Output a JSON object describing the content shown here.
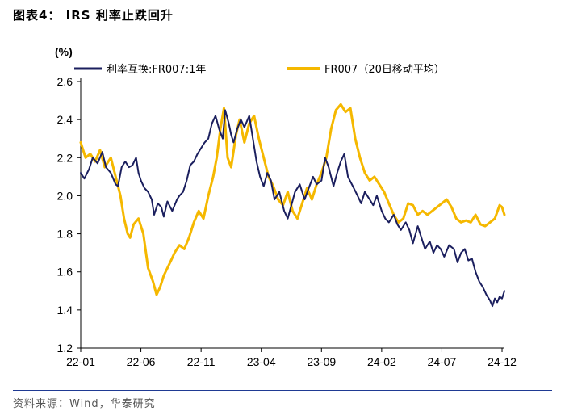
{
  "figure": {
    "title": "图表4： IRS 利率止跌回升",
    "source": "资料来源：Wind，华泰研究"
  },
  "colors": {
    "irs": "#1b1f5e",
    "fr007_ma": "#f5b800",
    "rule": "#1f3a93",
    "axis": "#000000"
  },
  "chart_data": {
    "type": "line",
    "unit_label": "(%)",
    "ylim": [
      1.2,
      2.6
    ],
    "y_ticks": [
      "1.2",
      "1.4",
      "1.6",
      "1.8",
      "2.0",
      "2.2",
      "2.4",
      "2.6"
    ],
    "x_ticks": [
      "22-01",
      "22-06",
      "22-11",
      "23-04",
      "23-09",
      "24-02",
      "24-07",
      "24-12"
    ],
    "grid": false,
    "legend_position": "top",
    "series": [
      {
        "name": "利率互换:FR007:1年",
        "color": "#1b1f5e",
        "x_months": [
          0,
          0.3,
          0.7,
          1.0,
          1.4,
          1.8,
          2.1,
          2.5,
          2.9,
          3.1,
          3.4,
          3.7,
          4.0,
          4.3,
          4.6,
          4.8,
          5.0,
          5.3,
          5.6,
          5.9,
          6.1,
          6.4,
          6.7,
          6.9,
          7.2,
          7.6,
          8.0,
          8.2,
          8.5,
          8.8,
          9.1,
          9.4,
          9.7,
          10.0,
          10.3,
          10.6,
          10.9,
          11.2,
          11.5,
          11.8,
          12.0,
          12.3,
          12.5,
          12.7,
          13.0,
          13.3,
          13.6,
          14.0,
          14.3,
          14.6,
          14.9,
          15.2,
          15.5,
          15.8,
          16.1,
          16.5,
          16.9,
          17.2,
          17.5,
          17.8,
          18.2,
          18.6,
          19.0,
          19.3,
          19.6,
          20.0,
          20.3,
          20.6,
          21.0,
          21.3,
          21.6,
          21.9,
          22.2,
          22.6,
          23.0,
          23.3,
          23.6,
          24.0,
          24.3,
          24.6,
          25.0,
          25.3,
          25.6,
          26.0,
          26.3,
          26.6,
          27.0,
          27.3,
          27.6,
          28.0,
          28.3,
          28.6,
          29.0,
          29.3,
          29.6,
          29.9,
          30.2,
          30.6,
          31.0,
          31.3,
          31.6,
          31.9,
          32.2,
          32.5,
          32.8,
          33.1,
          33.4,
          33.7,
          34.0,
          34.2,
          34.4,
          34.6,
          34.8,
          35.0,
          35.2
        ],
        "values": [
          2.12,
          2.09,
          2.14,
          2.2,
          2.17,
          2.23,
          2.15,
          2.12,
          2.06,
          2.05,
          2.15,
          2.18,
          2.15,
          2.16,
          2.2,
          2.12,
          2.08,
          2.04,
          2.02,
          1.98,
          1.9,
          1.96,
          1.94,
          1.89,
          1.97,
          1.92,
          1.98,
          2.0,
          2.02,
          2.08,
          2.16,
          2.18,
          2.22,
          2.25,
          2.28,
          2.3,
          2.38,
          2.42,
          2.35,
          2.3,
          2.45,
          2.38,
          2.32,
          2.28,
          2.35,
          2.4,
          2.36,
          2.42,
          2.3,
          2.18,
          2.1,
          2.05,
          2.12,
          2.08,
          1.98,
          2.02,
          1.92,
          1.88,
          1.95,
          2.02,
          2.06,
          1.98,
          2.05,
          2.1,
          2.06,
          2.08,
          2.2,
          2.15,
          2.05,
          2.12,
          2.18,
          2.22,
          2.1,
          2.05,
          2.0,
          1.96,
          2.02,
          1.98,
          1.95,
          2.0,
          1.92,
          1.88,
          1.86,
          1.9,
          1.85,
          1.82,
          1.86,
          1.82,
          1.75,
          1.84,
          1.78,
          1.72,
          1.76,
          1.7,
          1.74,
          1.72,
          1.68,
          1.74,
          1.72,
          1.65,
          1.7,
          1.72,
          1.66,
          1.67,
          1.6,
          1.55,
          1.52,
          1.48,
          1.45,
          1.42,
          1.46,
          1.44,
          1.47,
          1.46,
          1.5
        ]
      },
      {
        "name": "FR007（20日移动平均）",
        "color": "#f5b800",
        "x_months": [
          0,
          0.4,
          0.8,
          1.2,
          1.6,
          2.0,
          2.5,
          2.9,
          3.3,
          3.6,
          3.9,
          4.1,
          4.4,
          4.8,
          5.2,
          5.6,
          6.0,
          6.3,
          6.6,
          6.9,
          7.2,
          7.5,
          7.8,
          8.2,
          8.6,
          9.0,
          9.4,
          9.8,
          10.2,
          10.6,
          11.0,
          11.3,
          11.6,
          11.9,
          12.2,
          12.5,
          12.9,
          13.2,
          13.6,
          14.0,
          14.4,
          14.8,
          15.2,
          15.6,
          16.0,
          16.4,
          16.8,
          17.2,
          17.6,
          18.0,
          18.4,
          18.8,
          19.2,
          19.6,
          20.0,
          20.4,
          20.8,
          21.2,
          21.6,
          22.0,
          22.4,
          22.8,
          23.2,
          23.6,
          24.0,
          24.4,
          24.8,
          25.2,
          25.6,
          26.0,
          26.4,
          26.8,
          27.2,
          27.6,
          28.0,
          28.4,
          28.8,
          29.2,
          29.6,
          30.0,
          30.4,
          30.8,
          31.2,
          31.6,
          32.0,
          32.4,
          32.8,
          33.2,
          33.6,
          34.0,
          34.4,
          34.8,
          35.0,
          35.2
        ],
        "values": [
          2.28,
          2.2,
          2.22,
          2.18,
          2.24,
          2.15,
          2.2,
          2.1,
          2.0,
          1.88,
          1.8,
          1.78,
          1.85,
          1.88,
          1.8,
          1.62,
          1.55,
          1.48,
          1.52,
          1.58,
          1.62,
          1.66,
          1.7,
          1.74,
          1.72,
          1.78,
          1.86,
          1.92,
          1.88,
          2.0,
          2.1,
          2.2,
          2.35,
          2.46,
          2.2,
          2.15,
          2.32,
          2.4,
          2.28,
          2.38,
          2.42,
          2.3,
          2.2,
          2.1,
          2.05,
          1.98,
          1.95,
          2.02,
          1.92,
          1.88,
          1.96,
          2.04,
          1.98,
          2.06,
          2.12,
          2.2,
          2.35,
          2.45,
          2.48,
          2.44,
          2.46,
          2.3,
          2.2,
          2.12,
          2.08,
          2.1,
          2.06,
          2.02,
          1.96,
          1.9,
          1.86,
          1.88,
          1.96,
          1.95,
          1.9,
          1.92,
          1.9,
          1.92,
          1.94,
          1.96,
          1.98,
          1.94,
          1.88,
          1.86,
          1.87,
          1.86,
          1.9,
          1.85,
          1.84,
          1.86,
          1.88,
          1.95,
          1.94,
          1.9
        ]
      }
    ]
  }
}
